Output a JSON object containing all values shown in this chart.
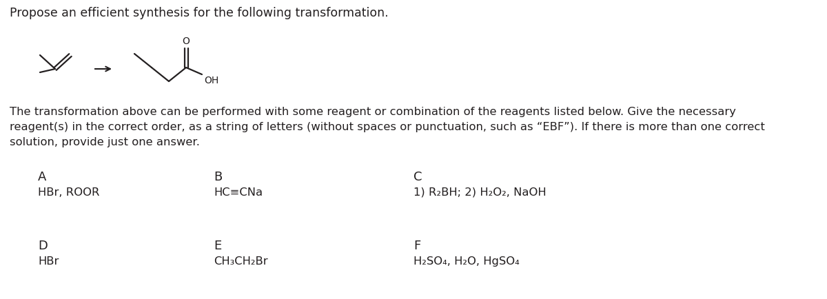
{
  "title": "Propose an efficient synthesis for the following transformation.",
  "paragraph_line1": "The transformation above can be performed with some reagent or combination of the reagents listed below. Give the necessary",
  "paragraph_line2": "reagent(s) in the correct order, as a string of letters (without spaces or punctuation, such as “EBF”). If there is more than one correct",
  "paragraph_line3": "solution, provide just one answer.",
  "label_A": "A",
  "label_B": "B",
  "label_C": "C",
  "label_D": "D",
  "label_E": "E",
  "label_F": "F",
  "text_A": "HBr, ROOR",
  "text_B": "HC≡CNa",
  "text_C": "1) R₂BH; 2) H₂O₂, NaOH",
  "text_D": "HBr",
  "text_E": "CH₃CH₂Br",
  "text_F": "H₂SO₄, H₂O, HgSO₄",
  "bg_color": "#ffffff",
  "text_color": "#231f20",
  "line_color": "#231f20",
  "font_size_title": 12.5,
  "font_size_para": 11.8,
  "font_size_label": 13,
  "font_size_reagent": 11.8,
  "font_size_mol": 10
}
